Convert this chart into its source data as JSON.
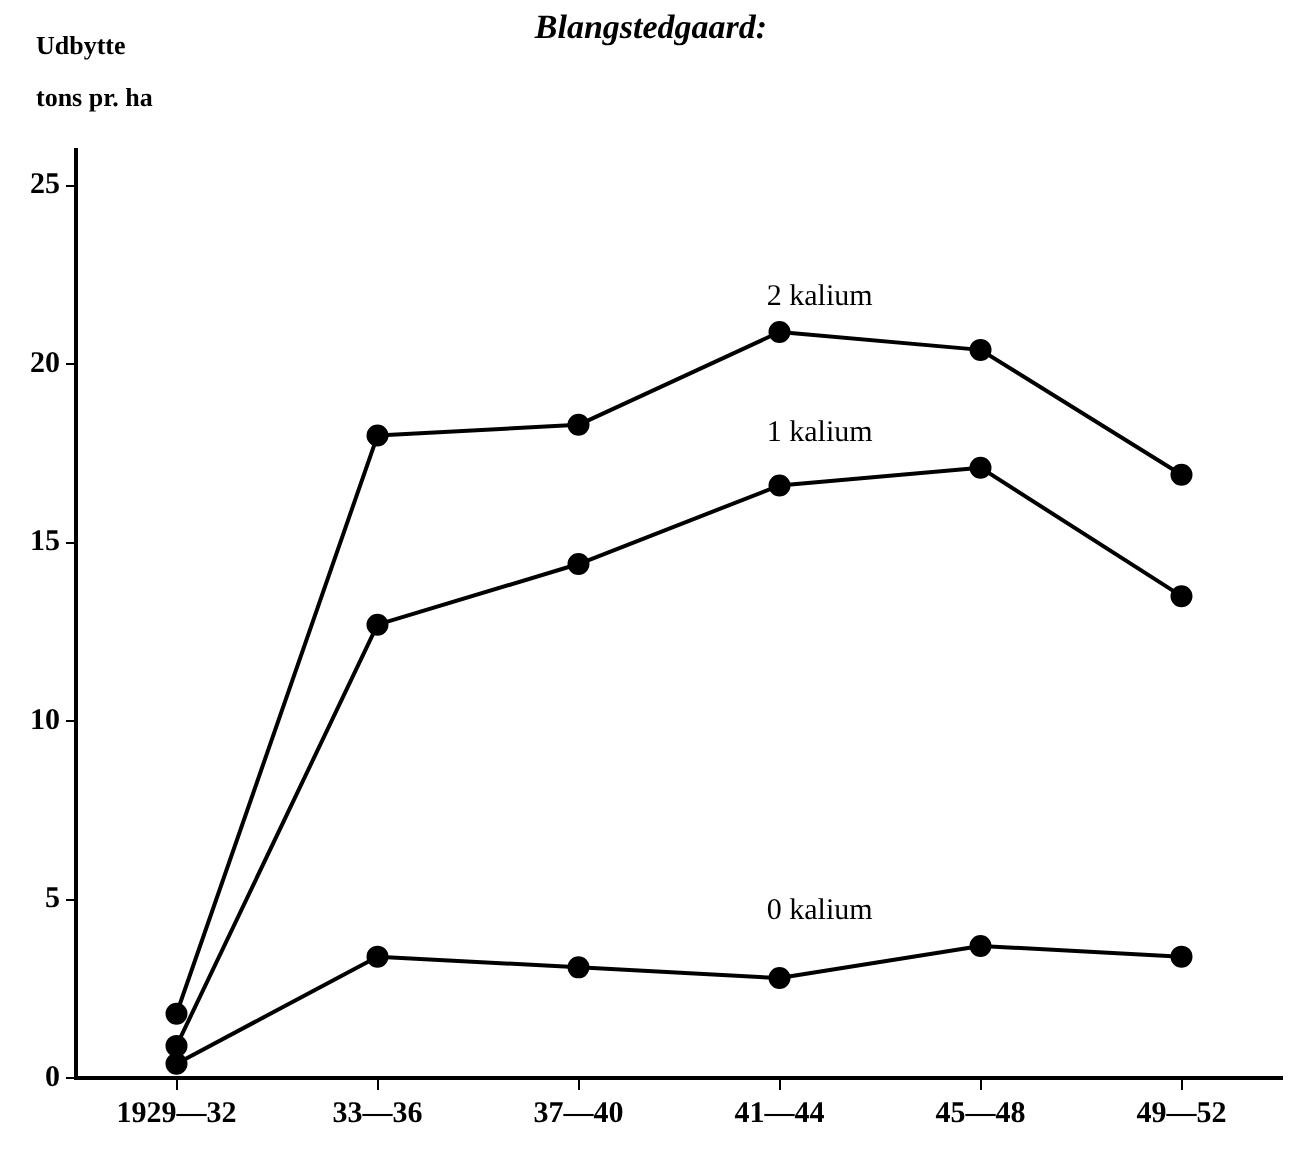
{
  "chart_data": {
    "type": "line",
    "title": "Blangstedgaard:",
    "ylabel": "Udbytte\ntons pr. ha",
    "categories": [
      "1929—32",
      "33—36",
      "37—40",
      "41—44",
      "45—48",
      "49—52"
    ],
    "series": [
      {
        "name": "2 kalium",
        "color": "#000000",
        "values": [
          1.8,
          18.0,
          18.3,
          20.9,
          20.4,
          16.9
        ]
      },
      {
        "name": "1 kalium",
        "color": "#000000",
        "values": [
          0.9,
          12.7,
          14.4,
          16.6,
          17.1,
          13.5
        ]
      },
      {
        "name": "0 kalium",
        "color": "#000000",
        "values": [
          0.4,
          3.4,
          3.1,
          2.8,
          3.7,
          3.4
        ]
      }
    ],
    "ylim": [
      0,
      26
    ],
    "yticks": [
      0,
      5,
      10,
      15,
      20,
      25
    ],
    "grid": false,
    "legend": false,
    "marker": "circle",
    "line_style": "solid"
  }
}
